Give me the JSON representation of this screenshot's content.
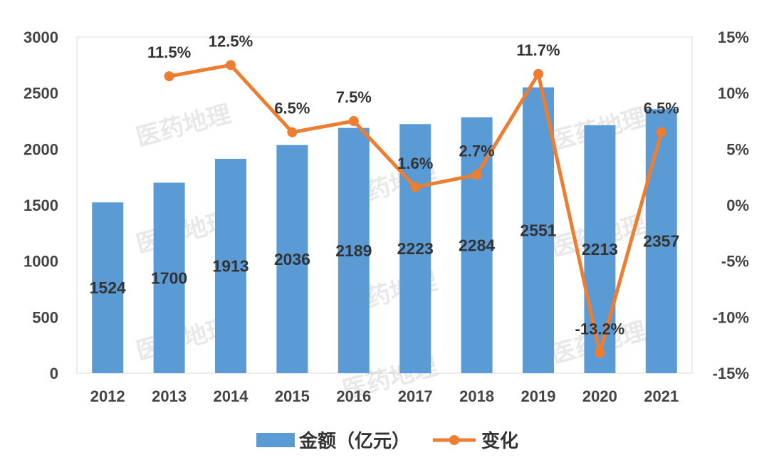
{
  "chart_data": {
    "type": "bar+line",
    "categories": [
      "2012",
      "2013",
      "2014",
      "2015",
      "2016",
      "2017",
      "2018",
      "2019",
      "2020",
      "2021"
    ],
    "series": [
      {
        "name": "金额（亿元）",
        "type": "bar",
        "axis": "left",
        "color": "#5B9BD5",
        "values": [
          1524,
          1700,
          1913,
          2036,
          2189,
          2223,
          2284,
          2551,
          2213,
          2357
        ],
        "labels": [
          "1524",
          "1700",
          "1913",
          "2036",
          "2189",
          "2223",
          "2284",
          "2551",
          "2213",
          "2357"
        ]
      },
      {
        "name": "变化",
        "type": "line",
        "axis": "right",
        "color": "#ED7D31",
        "values": [
          null,
          11.5,
          12.5,
          6.5,
          7.5,
          1.6,
          2.7,
          11.7,
          -13.2,
          6.5
        ],
        "labels": [
          "",
          "11.5%",
          "12.5%",
          "6.5%",
          "7.5%",
          "1.6%",
          "2.7%",
          "11.7%",
          "-13.2%",
          "6.5%"
        ]
      }
    ],
    "y_left": {
      "min": 0,
      "max": 3000,
      "ticks": [
        "0",
        "500",
        "1000",
        "1500",
        "2000",
        "2500",
        "3000"
      ]
    },
    "y_right": {
      "min": -15,
      "max": 15,
      "ticks": [
        "-15%",
        "-10%",
        "-5%",
        "0%",
        "5%",
        "10%",
        "15%"
      ]
    },
    "legend": {
      "position": "bottom",
      "items": [
        "金额（亿元）",
        "变化"
      ]
    },
    "watermark": "医药地理",
    "grid": false
  }
}
